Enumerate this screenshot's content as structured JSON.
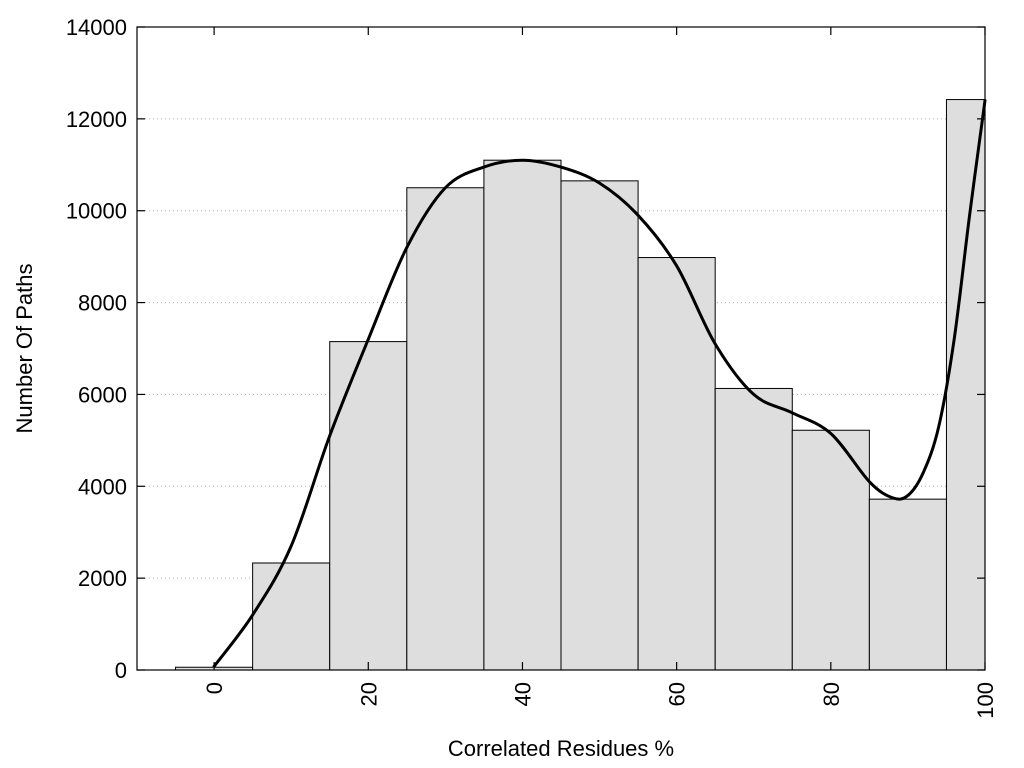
{
  "chart_data": {
    "type": "bar",
    "xlabel": "Correlated Residues %",
    "ylabel": "Number Of Paths",
    "xlim": [
      -10,
      100
    ],
    "ylim": [
      0,
      14000
    ],
    "x_ticks": [
      0,
      20,
      40,
      60,
      80,
      100
    ],
    "y_ticks": [
      0,
      2000,
      4000,
      6000,
      8000,
      10000,
      12000,
      14000
    ],
    "grid": "horizontal-dotted",
    "bar_width": 10,
    "categories": [
      0,
      10,
      20,
      30,
      40,
      50,
      60,
      70,
      80,
      90,
      100
    ],
    "values": [
      60,
      2330,
      7150,
      10500,
      11100,
      10650,
      8980,
      6130,
      5220,
      3720,
      12420
    ],
    "trend_curve": {
      "type": "line",
      "x": [
        0,
        5,
        10,
        15,
        20,
        25,
        30,
        35,
        40,
        45,
        50,
        55,
        60,
        65,
        70,
        75,
        80,
        85,
        88,
        90,
        92,
        94,
        96,
        98,
        100
      ],
      "y": [
        80,
        1200,
        2700,
        5100,
        7200,
        9200,
        10500,
        10950,
        11100,
        10950,
        10600,
        9900,
        8800,
        7100,
        6000,
        5600,
        5150,
        4100,
        3750,
        3800,
        4300,
        5300,
        7200,
        9900,
        12400
      ]
    },
    "colors": {
      "bar_fill": "#dedede",
      "bar_stroke": "#000000",
      "curve": "#000000"
    }
  }
}
